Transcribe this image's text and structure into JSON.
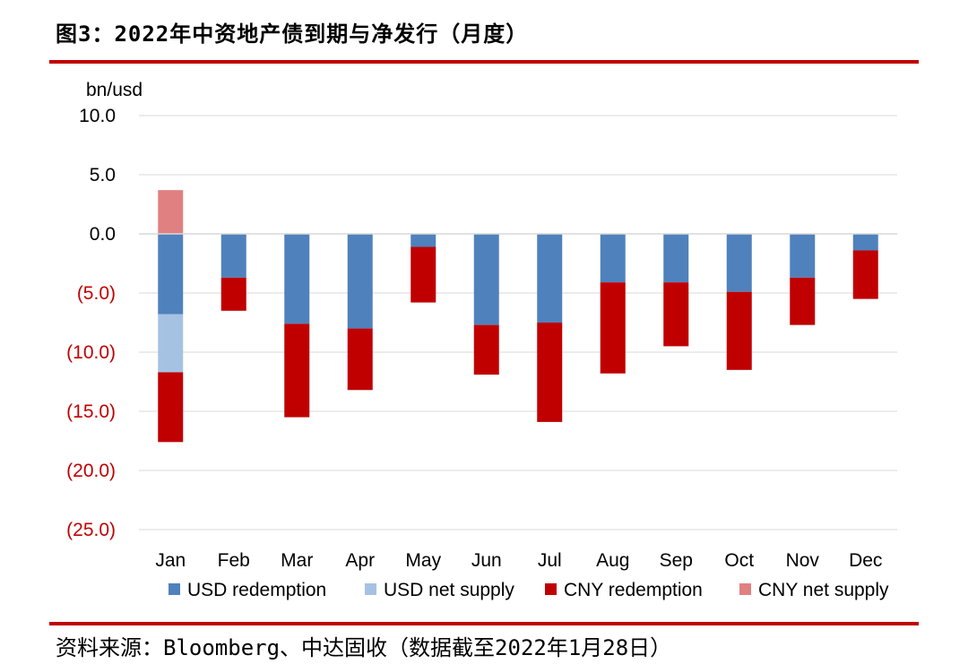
{
  "title": "图3：2022年中资地产债到期与净发行（月度）",
  "source": "资料来源：Bloomberg、中达固收（数据截至2022年1月28日）",
  "colors": {
    "accent_rule": "#c00000",
    "positive_tick": "#000000",
    "negative_tick": "#c00000",
    "grid": "#d9d9d9"
  },
  "chart_data": {
    "type": "bar",
    "stacked": true,
    "unit_label": "bn/usd",
    "ylim": [
      -25,
      10
    ],
    "yticks": [
      {
        "value": 10,
        "label": "10.0"
      },
      {
        "value": 5,
        "label": "5.0"
      },
      {
        "value": 0,
        "label": "0.0"
      },
      {
        "value": -5,
        "label": "(5.0)"
      },
      {
        "value": -10,
        "label": "(10.0)"
      },
      {
        "value": -15,
        "label": "(15.0)"
      },
      {
        "value": -20,
        "label": "(20.0)"
      },
      {
        "value": -25,
        "label": "(25.0)"
      }
    ],
    "grid": true,
    "legend_position": "bottom",
    "categories": [
      "Jan",
      "Feb",
      "Mar",
      "Apr",
      "May",
      "Jun",
      "Jul",
      "Aug",
      "Sep",
      "Oct",
      "Nov",
      "Dec"
    ],
    "series": [
      {
        "name": "USD redemption",
        "color": "#4f81bd",
        "values": [
          -6.8,
          -3.7,
          -7.6,
          -8.0,
          -1.1,
          -7.7,
          -7.5,
          -4.1,
          -4.1,
          -4.9,
          -3.7,
          -1.4
        ]
      },
      {
        "name": "USD net supply",
        "color": "#a6c2e3",
        "values": [
          -4.9,
          0,
          0,
          0,
          0,
          0,
          0,
          0,
          0,
          0,
          0,
          0
        ]
      },
      {
        "name": "CNY redemption",
        "color": "#c00000",
        "values": [
          -5.9,
          -2.8,
          -7.9,
          -5.2,
          -4.7,
          -4.2,
          -8.4,
          -7.7,
          -5.4,
          -6.6,
          -4.0,
          -4.1
        ]
      },
      {
        "name": "CNY net supply",
        "color": "#e08080",
        "values": [
          3.7,
          0,
          0,
          0,
          0,
          0,
          0,
          0,
          0,
          0,
          0,
          0
        ]
      }
    ]
  }
}
